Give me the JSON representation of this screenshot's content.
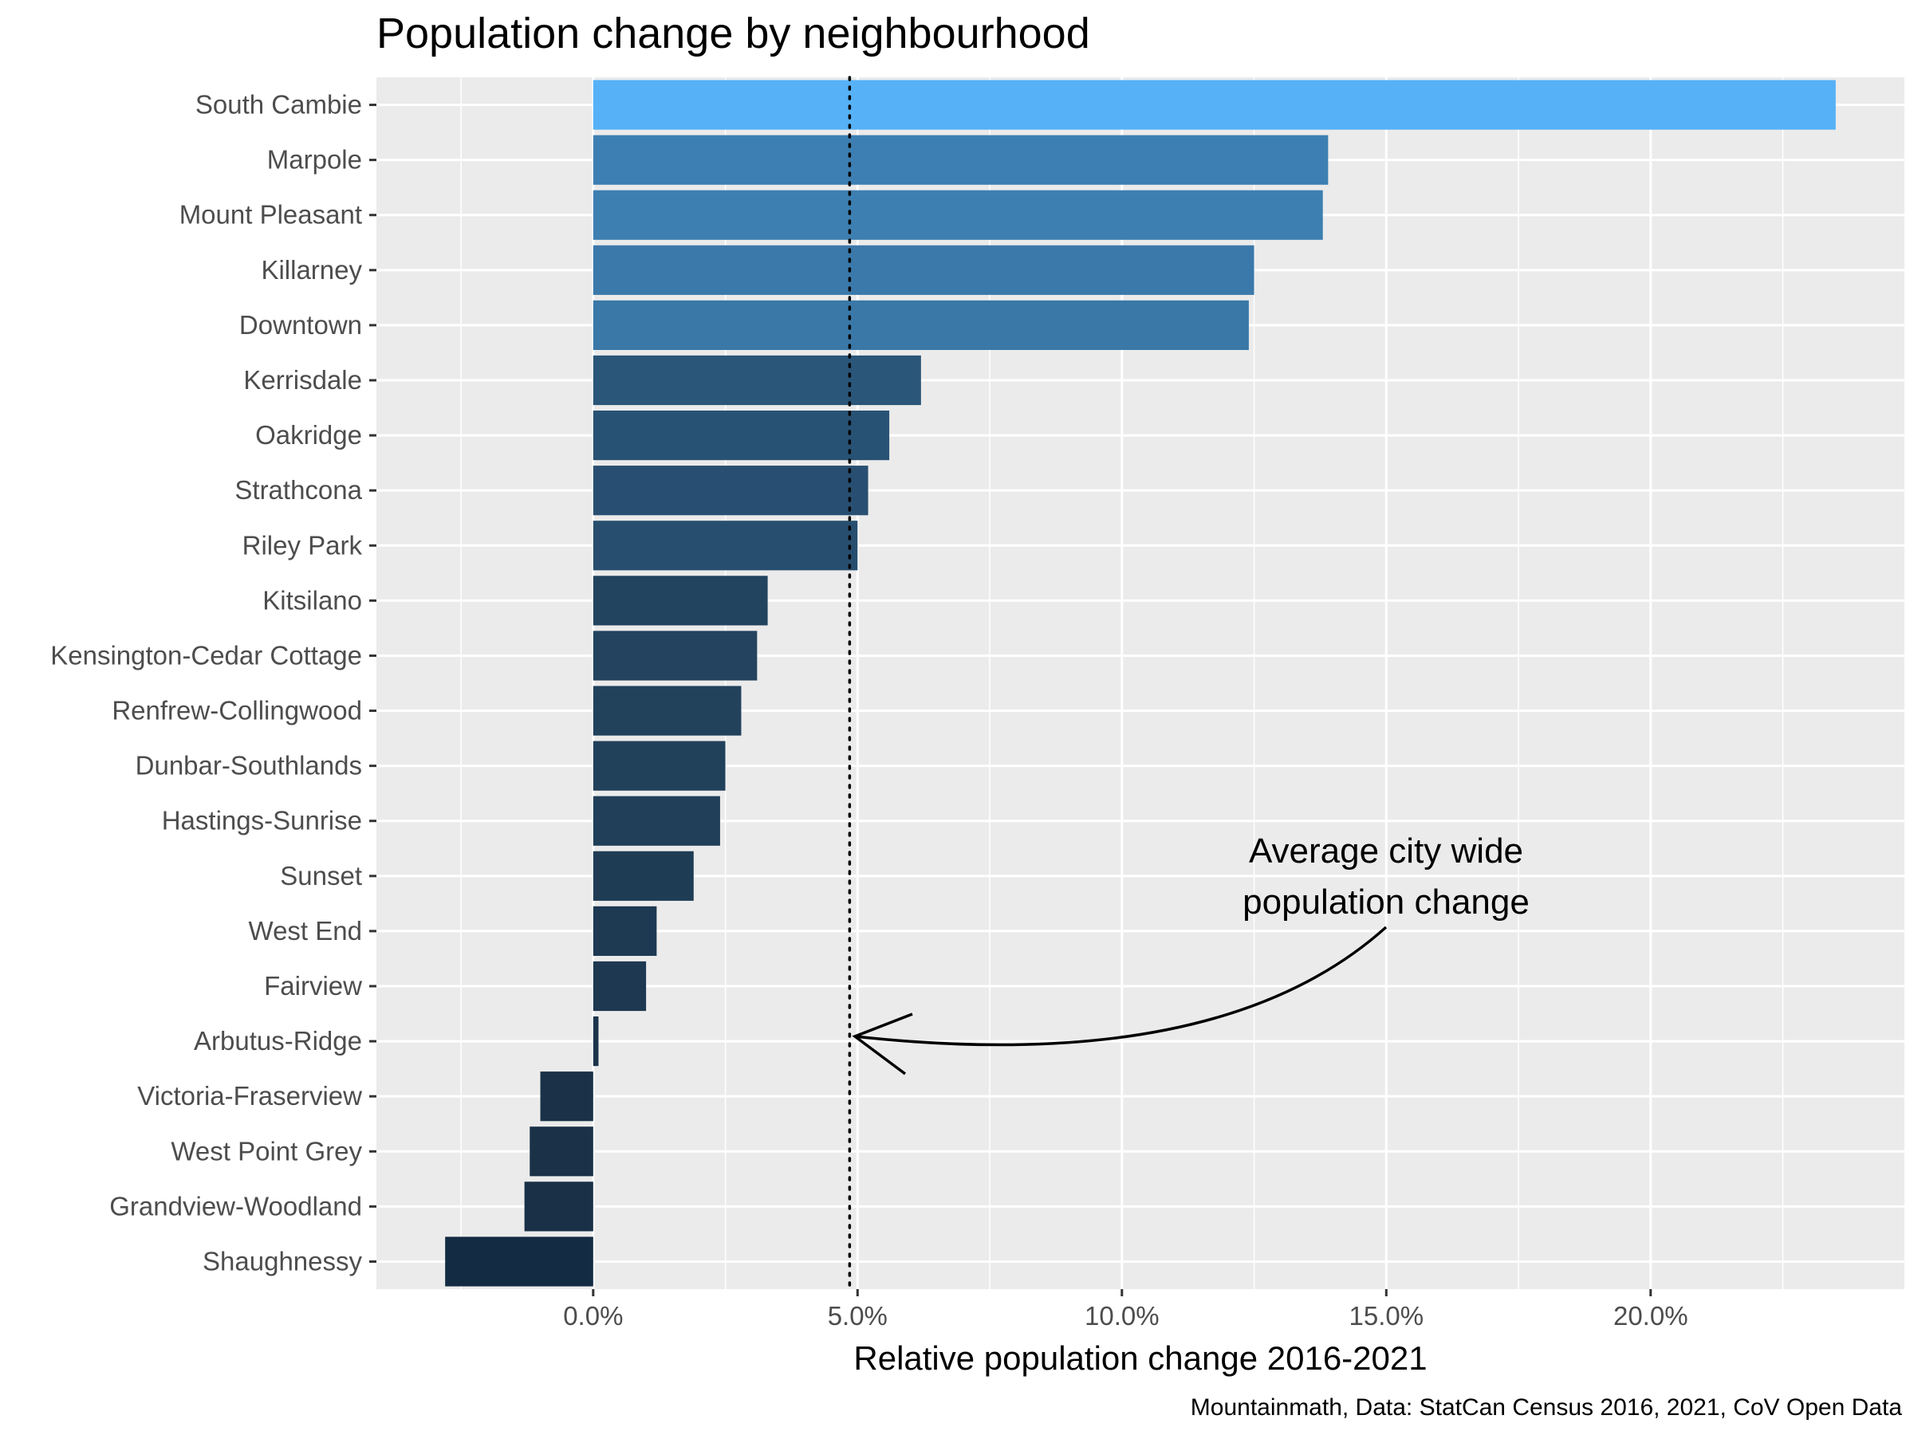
{
  "chart_data": {
    "type": "bar",
    "orientation": "horizontal",
    "title": "Population change by neighbourhood",
    "xlabel": "Relative population change 2016-2021",
    "ylabel": "",
    "caption": "Mountainmath, Data: StatCan Census 2016, 2021, CoV Open Data",
    "xlim": [
      -0.041,
      0.248
    ],
    "xticks": [
      0.0,
      0.05,
      0.1,
      0.15,
      0.2
    ],
    "xtick_labels": [
      "0.0%",
      "5.0%",
      "10.0%",
      "15.0%",
      "20.0%"
    ],
    "grid": true,
    "legend": "none",
    "categories": [
      "South Cambie",
      "Marpole",
      "Mount Pleasant",
      "Killarney",
      "Downtown",
      "Kerrisdale",
      "Oakridge",
      "Strathcona",
      "Riley Park",
      "Kitsilano",
      "Kensington-Cedar Cottage",
      "Renfrew-Collingwood",
      "Dunbar-Southlands",
      "Hastings-Sunrise",
      "Sunset",
      "West End",
      "Fairview",
      "Arbutus-Ridge",
      "Victoria-Fraserview",
      "West Point Grey",
      "Grandview-Woodland",
      "Shaughnessy"
    ],
    "values": [
      0.235,
      0.139,
      0.138,
      0.125,
      0.124,
      0.062,
      0.056,
      0.052,
      0.05,
      0.033,
      0.031,
      0.028,
      0.025,
      0.024,
      0.019,
      0.012,
      0.01,
      0.001,
      -0.01,
      -0.012,
      -0.013,
      -0.028
    ],
    "bar_colors": [
      "#56b1f7",
      "#3d7fb2",
      "#3d7fb1",
      "#3b79aa",
      "#3a78a8",
      "#2a5679",
      "#285274",
      "#284f71",
      "#274e6f",
      "#23445f",
      "#23435e",
      "#22425c",
      "#21405a",
      "#213f59",
      "#1f3c55",
      "#1e3952",
      "#1e3851",
      "#1b344a",
      "#1a3148",
      "#1a3147",
      "#193047",
      "#132b43"
    ],
    "reference_line": {
      "value": 0.0485,
      "style": "dotted"
    },
    "annotation": {
      "lines": [
        "Average city wide",
        "population change"
      ]
    },
    "colors": {
      "panel_background": "#ebebeb",
      "grid": "#ffffff"
    }
  }
}
